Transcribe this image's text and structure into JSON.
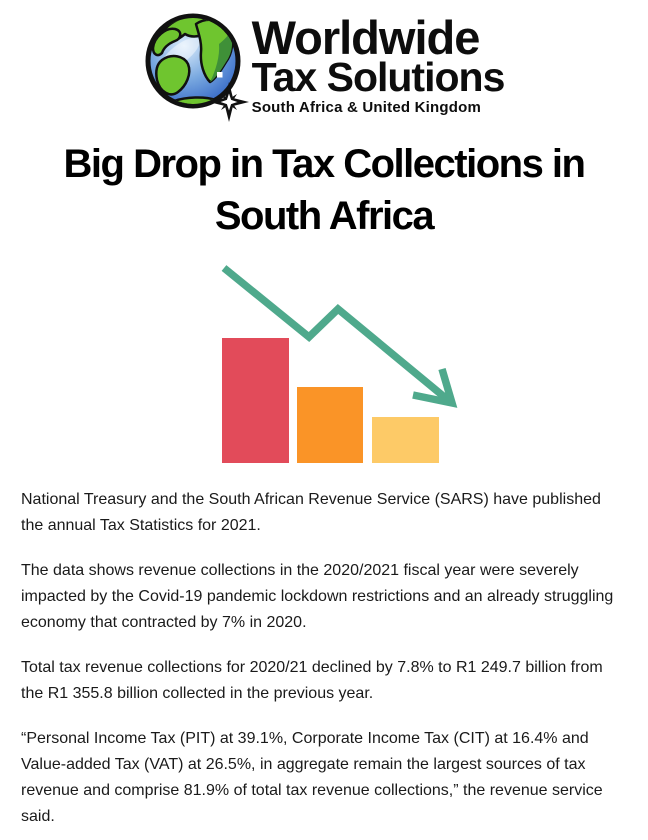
{
  "logo": {
    "name_line1": "Worldwide",
    "name_line2": "Tax Solutions",
    "tagline": "South Africa & United Kingdom",
    "colors": {
      "ocean_light": "#dcecfb",
      "ocean_mid": "#7aa9e0",
      "ocean_dark": "#2e62c4",
      "land": "#6fc52f",
      "land_dark": "#3f9038",
      "outline": "#111111"
    }
  },
  "headline": {
    "line1": "Big Drop in Tax Collections in",
    "line2": "South Africa"
  },
  "illustration": {
    "type": "declining-bar-chart-with-down-arrow",
    "bars": [
      {
        "label": "bar-high",
        "relative_height": 125,
        "color": "#E24B5A"
      },
      {
        "label": "bar-mid",
        "relative_height": 76,
        "color": "#FA9427"
      },
      {
        "label": "bar-low",
        "relative_height": 46,
        "color": "#FDCA67"
      }
    ],
    "arrow": {
      "direction": "down-right",
      "color": "#4FA98C"
    }
  },
  "paragraphs": [
    "National Treasury and the South African Revenue Service (SARS) have published the annual Tax Statistics for 2021.",
    "The data shows revenue collections in the 2020/2021 fiscal year were severely impacted by the Covid-19 pandemic lockdown restrictions and an already struggling economy that contracted by 7% in 2020.",
    "Total tax revenue collections for 2020/21 declined by 7.8% to R1 249.7 billion from the R1 355.8 billion collected in the previous year.",
    "“Personal Income Tax (PIT) at 39.1%, Corporate Income Tax (CIT) at 16.4% and Value-added Tax (VAT) at 26.5%, in aggregate remain the largest sources of tax revenue and comprise 81.9% of total tax revenue collections,” the revenue service said."
  ]
}
